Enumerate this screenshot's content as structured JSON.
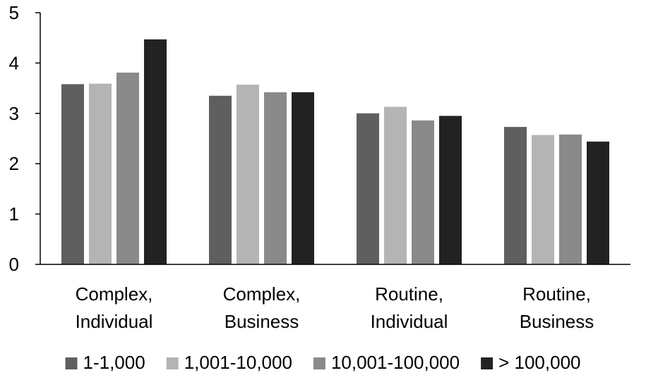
{
  "chart_data": {
    "type": "bar",
    "title": "",
    "xlabel": "",
    "ylabel": "",
    "ylim": [
      0,
      5
    ],
    "yticks": [
      0,
      1,
      2,
      3,
      4,
      5
    ],
    "ytick_labels": [
      "0",
      "1",
      "2",
      "3",
      "4",
      "5"
    ],
    "grid": false,
    "legend_position": "bottom",
    "categories": [
      [
        "Complex,",
        "Individual"
      ],
      [
        "Complex,",
        "Business"
      ],
      [
        "Routine,",
        "Individual"
      ],
      [
        "Routine,",
        "Business"
      ]
    ],
    "series": [
      {
        "name": "1-1,000",
        "color": "#5f5f5f",
        "values": [
          3.58,
          3.35,
          3.0,
          2.73
        ]
      },
      {
        "name": "1,001-10,000",
        "color": "#b4b4b4",
        "values": [
          3.59,
          3.57,
          3.13,
          2.57
        ]
      },
      {
        "name": "10,001-100,000",
        "color": "#8a8a8a",
        "values": [
          3.81,
          3.42,
          2.86,
          2.58
        ]
      },
      {
        "name": "> 100,000",
        "color": "#222222",
        "values": [
          4.47,
          3.42,
          2.95,
          2.44
        ]
      }
    ]
  }
}
